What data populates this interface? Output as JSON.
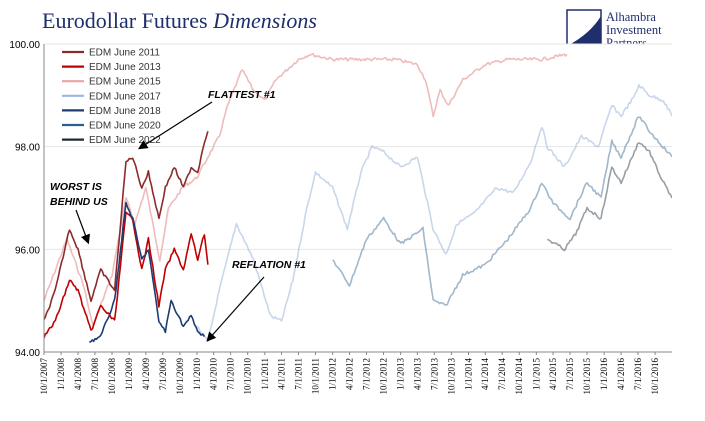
{
  "chart_data": {
    "type": "line",
    "title": "Eurodollar Futures ",
    "title_italic": "Dimensions",
    "ylim": [
      94.0,
      100.0
    ],
    "yticks": [
      "94.00",
      "96.00",
      "98.00",
      "100.00"
    ],
    "ytick_values": [
      94,
      96,
      98,
      100
    ],
    "x_start": "2007-10-01",
    "x_end": "2016-12-31",
    "xtick_labels": [
      "10/1/2007",
      "1/1/2008",
      "4/1/2008",
      "7/1/2008",
      "10/1/2008",
      "1/1/2009",
      "4/1/2009",
      "7/1/2009",
      "10/1/2009",
      "1/1/2010",
      "4/1/2010",
      "7/1/2010",
      "10/1/2010",
      "1/1/2011",
      "4/1/2011",
      "7/1/2011",
      "10/1/2011",
      "1/1/2012",
      "4/1/2012",
      "7/1/2012",
      "10/1/2012",
      "1/1/2013",
      "4/1/2013",
      "7/1/2013",
      "10/1/2013",
      "1/1/2014",
      "4/1/2014",
      "7/1/2014",
      "10/1/2014",
      "1/1/2015",
      "4/1/2015",
      "7/1/2015",
      "10/1/2015",
      "1/1/2016",
      "4/1/2016",
      "7/1/2016",
      "10/1/2016"
    ],
    "legend_position": "top-left",
    "grid": true,
    "series": [
      {
        "name": "EDM June 2011",
        "color": "#8b2c2c",
        "points": [
          [
            "2007-10-01",
            94.6
          ],
          [
            "2007-12-01",
            95.2
          ],
          [
            "2008-02-15",
            96.4
          ],
          [
            "2008-04-01",
            96.0
          ],
          [
            "2008-06-10",
            95.0
          ],
          [
            "2008-08-01",
            95.6
          ],
          [
            "2008-10-15",
            95.2
          ],
          [
            "2008-12-15",
            97.7
          ],
          [
            "2009-01-20",
            97.8
          ],
          [
            "2009-03-10",
            97.2
          ],
          [
            "2009-04-15",
            97.5
          ],
          [
            "2009-06-10",
            96.6
          ],
          [
            "2009-07-15",
            97.2
          ],
          [
            "2009-09-01",
            97.6
          ],
          [
            "2009-10-20",
            97.2
          ],
          [
            "2009-12-01",
            97.6
          ],
          [
            "2010-01-05",
            97.5
          ],
          [
            "2010-02-10",
            98.1
          ],
          [
            "2010-03-01",
            98.3
          ]
        ]
      },
      {
        "name": "EDM June 2013",
        "color": "#c00000",
        "points": [
          [
            "2007-10-01",
            94.3
          ],
          [
            "2007-12-01",
            94.6
          ],
          [
            "2008-02-15",
            95.4
          ],
          [
            "2008-04-01",
            95.2
          ],
          [
            "2008-06-10",
            94.4
          ],
          [
            "2008-08-01",
            94.9
          ],
          [
            "2008-10-15",
            94.6
          ],
          [
            "2008-12-15",
            96.7
          ],
          [
            "2009-01-20",
            96.6
          ],
          [
            "2009-03-10",
            95.6
          ],
          [
            "2009-04-15",
            96.2
          ],
          [
            "2009-06-10",
            94.9
          ],
          [
            "2009-07-15",
            95.6
          ],
          [
            "2009-09-01",
            96.0
          ],
          [
            "2009-10-20",
            95.6
          ],
          [
            "2009-12-01",
            96.3
          ],
          [
            "2010-01-05",
            95.8
          ],
          [
            "2010-02-10",
            96.3
          ],
          [
            "2010-03-01",
            95.7
          ]
        ]
      },
      {
        "name": "EDM June 2015",
        "color": "#e8a5a5",
        "points": [
          [
            "2007-10-01",
            95.0
          ],
          [
            "2008-02-01",
            96.2
          ],
          [
            "2008-05-01",
            95.3
          ],
          [
            "2008-06-20",
            94.5
          ],
          [
            "2008-10-01",
            95.5
          ],
          [
            "2008-12-15",
            97.0
          ],
          [
            "2009-02-01",
            96.5
          ],
          [
            "2009-04-01",
            97.2
          ],
          [
            "2009-06-15",
            95.8
          ],
          [
            "2009-08-01",
            96.8
          ],
          [
            "2009-10-15",
            97.2
          ],
          [
            "2010-01-01",
            97.4
          ],
          [
            "2010-03-01",
            97.8
          ],
          [
            "2010-05-01",
            98.2
          ],
          [
            "2010-06-15",
            98.8
          ],
          [
            "2010-09-01",
            99.5
          ],
          [
            "2010-11-01",
            99.1
          ],
          [
            "2011-01-01",
            98.9
          ],
          [
            "2011-03-01",
            99.3
          ],
          [
            "2011-05-01",
            99.5
          ],
          [
            "2011-07-01",
            99.7
          ],
          [
            "2011-09-01",
            99.8
          ],
          [
            "2012-01-01",
            99.7
          ],
          [
            "2012-06-01",
            99.7
          ],
          [
            "2012-12-01",
            99.7
          ],
          [
            "2013-04-01",
            99.6
          ],
          [
            "2013-05-15",
            99.3
          ],
          [
            "2013-06-25",
            98.6
          ],
          [
            "2013-08-01",
            99.1
          ],
          [
            "2013-09-15",
            98.8
          ],
          [
            "2013-12-01",
            99.3
          ],
          [
            "2014-04-01",
            99.6
          ],
          [
            "2014-08-01",
            99.7
          ],
          [
            "2015-02-01",
            99.7
          ],
          [
            "2015-06-15",
            99.8
          ]
        ]
      },
      {
        "name": "EDM June 2017",
        "color": "#9db4db",
        "points": [
          [
            "2010-01-01",
            94.5
          ],
          [
            "2010-03-01",
            94.2
          ],
          [
            "2010-05-01",
            95.2
          ],
          [
            "2010-08-01",
            96.5
          ],
          [
            "2010-11-01",
            95.8
          ],
          [
            "2011-02-01",
            94.7
          ],
          [
            "2011-04-01",
            94.6
          ],
          [
            "2011-06-01",
            95.4
          ],
          [
            "2011-08-15",
            96.8
          ],
          [
            "2011-10-01",
            97.5
          ],
          [
            "2012-01-01",
            97.2
          ],
          [
            "2012-03-20",
            96.4
          ],
          [
            "2012-06-01",
            97.5
          ],
          [
            "2012-08-01",
            98.0
          ],
          [
            "2012-10-01",
            97.9
          ],
          [
            "2013-01-01",
            97.6
          ],
          [
            "2013-04-01",
            97.8
          ],
          [
            "2013-06-25",
            96.4
          ],
          [
            "2013-09-01",
            95.9
          ],
          [
            "2013-11-01",
            96.5
          ],
          [
            "2014-02-01",
            96.7
          ],
          [
            "2014-06-01",
            97.2
          ],
          [
            "2014-09-01",
            97.1
          ],
          [
            "2014-12-01",
            97.7
          ],
          [
            "2015-01-30",
            98.4
          ],
          [
            "2015-03-01",
            98.0
          ],
          [
            "2015-06-01",
            97.6
          ],
          [
            "2015-09-01",
            98.2
          ],
          [
            "2015-12-01",
            98.0
          ],
          [
            "2016-02-11",
            98.8
          ],
          [
            "2016-04-01",
            98.6
          ],
          [
            "2016-06-15",
            99.0
          ],
          [
            "2016-07-06",
            99.2
          ],
          [
            "2016-09-01",
            99.0
          ],
          [
            "2016-11-15",
            98.9
          ],
          [
            "2016-12-31",
            98.6
          ]
        ]
      },
      {
        "name": "EDM June 2018",
        "color": "#1f3b73",
        "points": [
          [
            "2008-06-01",
            94.2
          ],
          [
            "2008-08-01",
            94.3
          ],
          [
            "2008-10-15",
            95.0
          ],
          [
            "2008-12-15",
            96.9
          ],
          [
            "2009-01-20",
            96.6
          ],
          [
            "2009-03-10",
            95.8
          ],
          [
            "2009-04-15",
            96.0
          ],
          [
            "2009-06-10",
            94.6
          ],
          [
            "2009-07-15",
            94.4
          ],
          [
            "2009-08-15",
            95.0
          ],
          [
            "2009-10-20",
            94.5
          ],
          [
            "2009-12-01",
            94.7
          ],
          [
            "2010-01-05",
            94.4
          ],
          [
            "2010-02-10",
            94.3
          ]
        ]
      },
      {
        "name": "EDM June 2020",
        "color": "#2e5f8a",
        "points": [
          [
            "2012-01-01",
            95.8
          ],
          [
            "2012-04-01",
            95.3
          ],
          [
            "2012-07-01",
            96.2
          ],
          [
            "2012-10-01",
            96.6
          ],
          [
            "2013-01-01",
            96.1
          ],
          [
            "2013-05-01",
            96.4
          ],
          [
            "2013-06-25",
            95.0
          ],
          [
            "2013-09-01",
            94.9
          ],
          [
            "2013-12-01",
            95.5
          ],
          [
            "2014-04-01",
            95.7
          ],
          [
            "2014-08-01",
            96.2
          ],
          [
            "2014-12-01",
            96.8
          ],
          [
            "2015-01-30",
            97.3
          ],
          [
            "2015-04-01",
            96.9
          ],
          [
            "2015-07-01",
            96.6
          ],
          [
            "2015-10-01",
            97.3
          ],
          [
            "2015-12-15",
            97.0
          ],
          [
            "2016-02-11",
            98.1
          ],
          [
            "2016-04-01",
            97.8
          ],
          [
            "2016-07-06",
            98.6
          ],
          [
            "2016-09-01",
            98.3
          ],
          [
            "2016-12-31",
            97.8
          ]
        ]
      },
      {
        "name": "EDM June 2022",
        "color": "#1c2a3a",
        "points": [
          [
            "2015-03-01",
            96.2
          ],
          [
            "2015-06-01",
            96.0
          ],
          [
            "2015-08-01",
            96.3
          ],
          [
            "2015-10-01",
            96.8
          ],
          [
            "2015-12-15",
            96.6
          ],
          [
            "2016-02-11",
            97.6
          ],
          [
            "2016-04-01",
            97.3
          ],
          [
            "2016-07-06",
            98.1
          ],
          [
            "2016-09-01",
            97.9
          ],
          [
            "2016-11-01",
            97.4
          ],
          [
            "2016-12-31",
            97.0
          ]
        ]
      }
    ],
    "annotations": [
      {
        "text": "FLATTEST #1"
      },
      {
        "text": "WORST IS"
      },
      {
        "text": "BEHIND US"
      },
      {
        "text": "REFLATION #1"
      }
    ]
  },
  "logo": {
    "line1": "Alhambra",
    "line2": "Investment",
    "line3": "Partners"
  }
}
